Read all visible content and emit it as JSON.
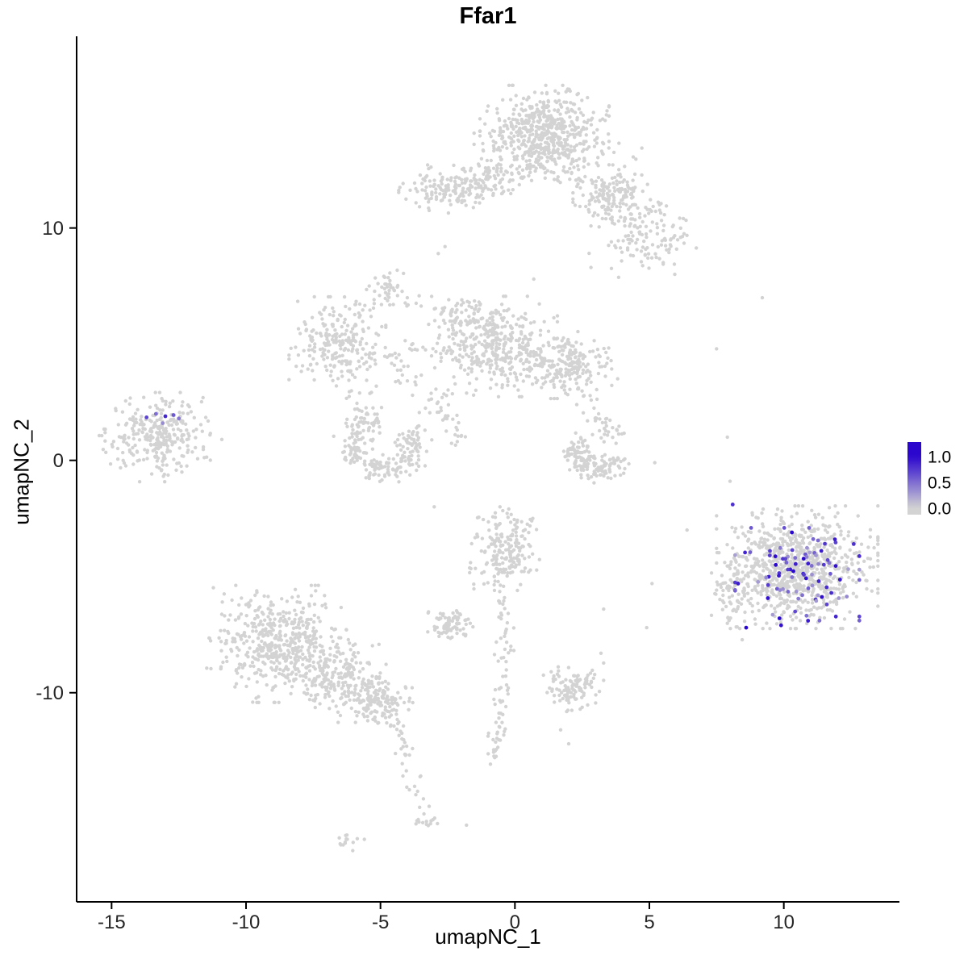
{
  "chart_data": {
    "type": "scatter",
    "title": "Ffar1",
    "xlabel": "umapNC_1",
    "ylabel": "umapNC_2",
    "xlim": [
      -16.3,
      14.3
    ],
    "ylim": [
      -19.0,
      18.25
    ],
    "xticks": [
      -15,
      -10,
      -5,
      0,
      5,
      10
    ],
    "yticks": [
      -10,
      0,
      10
    ],
    "grid": false,
    "color_low": "#d3d3d3",
    "color_high": "#2b07ce",
    "legend": {
      "position": "right",
      "ticks": [
        {
          "label": "1.0",
          "value": 1.0
        },
        {
          "label": "0.5",
          "value": 0.5
        },
        {
          "label": "0.0",
          "value": 0.0
        }
      ]
    },
    "clusters": [
      {
        "name": "top-main",
        "type": "gauss",
        "cx": 1.1,
        "cy": 14.1,
        "sx": 1.0,
        "sy": 0.85,
        "n": 550
      },
      {
        "name": "top-main-fringe",
        "type": "gauss",
        "cx": 1.6,
        "cy": 12.9,
        "sx": 1.3,
        "sy": 0.5,
        "n": 90
      },
      {
        "name": "top-right-dense",
        "type": "gauss",
        "cx": 3.6,
        "cy": 11.4,
        "sx": 0.6,
        "sy": 0.55,
        "n": 150
      },
      {
        "name": "top-right-spray",
        "type": "gauss",
        "cx": 4.8,
        "cy": 9.7,
        "sx": 0.85,
        "sy": 0.85,
        "n": 140
      },
      {
        "name": "top-left-arm",
        "type": "gauss",
        "cx": -2.4,
        "cy": 11.7,
        "sx": 0.8,
        "sy": 0.45,
        "n": 150
      },
      {
        "name": "top-bridge",
        "type": "gauss",
        "cx": -0.7,
        "cy": 12.2,
        "sx": 0.55,
        "sy": 0.4,
        "n": 60
      },
      {
        "name": "mid-left-blob",
        "type": "gauss",
        "cx": -6.6,
        "cy": 5.0,
        "sx": 0.75,
        "sy": 0.85,
        "n": 220
      },
      {
        "name": "mid-small-blob",
        "type": "gauss",
        "cx": -4.7,
        "cy": 7.5,
        "sx": 0.3,
        "sy": 0.35,
        "n": 30
      },
      {
        "name": "mid-center-blob",
        "type": "gauss",
        "cx": -0.7,
        "cy": 4.9,
        "sx": 0.95,
        "sy": 0.9,
        "n": 350
      },
      {
        "name": "mid-center-armpit",
        "type": "gauss",
        "cx": -1.9,
        "cy": 6.2,
        "sx": 0.45,
        "sy": 0.45,
        "n": 60
      },
      {
        "name": "mid-right-blob",
        "type": "gauss",
        "cx": 1.9,
        "cy": 4.1,
        "sx": 0.8,
        "sy": 0.6,
        "n": 220
      },
      {
        "name": "chain-e-g",
        "type": "line",
        "x1": -5.6,
        "y1": 4.6,
        "x2": -2.3,
        "y2": 4.9,
        "jitter": 0.3,
        "n": 40
      },
      {
        "name": "chain-diag",
        "type": "line",
        "x1": -4.5,
        "y1": 4.2,
        "x2": -2.7,
        "y2": 2.1,
        "jitter": 0.25,
        "n": 25
      },
      {
        "name": "chain-f-g",
        "type": "line",
        "x1": -4.6,
        "y1": 7.3,
        "x2": -2.6,
        "y2": 6.1,
        "jitter": 0.25,
        "n": 18
      },
      {
        "name": "chain-f-e",
        "type": "line",
        "x1": -5.0,
        "y1": 7.2,
        "x2": -6.2,
        "y2": 5.9,
        "jitter": 0.2,
        "n": 14
      },
      {
        "name": "chain-e-j",
        "type": "line",
        "x1": -6.3,
        "y1": 3.9,
        "x2": -5.3,
        "y2": 1.9,
        "jitter": 0.3,
        "n": 20
      },
      {
        "name": "ring-low-mid",
        "type": "arc",
        "cx": -4.9,
        "cy": 0.7,
        "r": 1.15,
        "a1": 100,
        "a2": 395,
        "w": 0.3,
        "n": 240
      },
      {
        "name": "chain-k",
        "type": "line",
        "x1": -3.2,
        "y1": 2.7,
        "x2": -2.0,
        "y2": 0.9,
        "jitter": 0.25,
        "n": 30
      },
      {
        "name": "left-cluster",
        "type": "gauss",
        "cx": -13.3,
        "cy": 1.0,
        "sx": 0.9,
        "sy": 0.8,
        "n": 300
      },
      {
        "name": "crescent-right-mid",
        "type": "arc",
        "cx": 3.1,
        "cy": 0.3,
        "r": 0.8,
        "a1": -10,
        "a2": -230,
        "w": 0.25,
        "n": 160
      },
      {
        "name": "crescent-top",
        "type": "gauss",
        "cx": 3.5,
        "cy": 1.4,
        "sx": 0.3,
        "sy": 0.3,
        "n": 30
      },
      {
        "name": "chain-h-m",
        "type": "line",
        "x1": 2.5,
        "y1": 3.3,
        "x2": 3.0,
        "y2": 2.0,
        "jitter": 0.2,
        "n": 12
      },
      {
        "name": "right-cluster",
        "type": "gauss",
        "cx": 10.5,
        "cy": -4.6,
        "sx": 1.25,
        "sy": 1.1,
        "n": 850
      },
      {
        "name": "right-cluster-west",
        "type": "gauss",
        "cx": 8.15,
        "cy": -5.8,
        "sx": 0.35,
        "sy": 0.8,
        "n": 60
      },
      {
        "name": "bottom-left-main",
        "type": "gauss",
        "cx": -8.7,
        "cy": -7.9,
        "sx": 1.15,
        "sy": 1.05,
        "n": 520
      },
      {
        "name": "bottom-left-arm",
        "type": "gauss",
        "cx": -6.3,
        "cy": -9.6,
        "sx": 0.8,
        "sy": 0.7,
        "n": 200
      },
      {
        "name": "bottom-left-arm2",
        "type": "gauss",
        "cx": -5.0,
        "cy": -10.4,
        "sx": 0.5,
        "sy": 0.45,
        "n": 120
      },
      {
        "name": "bottom-left-tail",
        "type": "line",
        "x1": -4.5,
        "y1": -11.0,
        "x2": -3.5,
        "y2": -15.3,
        "jitter": 0.17,
        "n": 35
      },
      {
        "name": "tail-blob",
        "type": "gauss",
        "cx": -3.4,
        "cy": -15.5,
        "sx": 0.22,
        "sy": 0.2,
        "n": 14
      },
      {
        "name": "tail-blob2",
        "type": "gauss",
        "cx": -6.2,
        "cy": -16.4,
        "sx": 0.25,
        "sy": 0.18,
        "n": 14
      },
      {
        "name": "center-bottom-blob",
        "type": "gauss",
        "cx": -0.4,
        "cy": -3.8,
        "sx": 0.55,
        "sy": 0.75,
        "n": 200
      },
      {
        "name": "small-blob-s",
        "type": "gauss",
        "cx": -2.4,
        "cy": -7.1,
        "sx": 0.35,
        "sy": 0.3,
        "n": 80
      },
      {
        "name": "strand-down1",
        "type": "line",
        "x1": -0.4,
        "y1": -5.6,
        "x2": -0.4,
        "y2": -9.3,
        "jitter": 0.15,
        "n": 35
      },
      {
        "name": "strand-down2",
        "type": "line",
        "x1": -0.4,
        "y1": -9.4,
        "x2": -0.8,
        "y2": -13.2,
        "jitter": 0.15,
        "n": 45
      },
      {
        "name": "bottom-center-blob",
        "type": "gauss",
        "cx": 2.1,
        "cy": -9.8,
        "sx": 0.5,
        "sy": 0.45,
        "n": 110
      },
      {
        "name": "singles",
        "type": "points",
        "pts": [
          [
            -2.85,
            8.9
          ],
          [
            -2.6,
            9.2
          ],
          [
            0.7,
            7.8
          ],
          [
            -11.6,
            2.7
          ],
          [
            -10.9,
            0.9
          ],
          [
            9.2,
            7.0
          ],
          [
            7.5,
            4.8
          ],
          [
            7.9,
            1.0
          ],
          [
            8.0,
            -0.9
          ],
          [
            5.1,
            -5.3
          ],
          [
            4.9,
            -7.2
          ],
          [
            3.3,
            -6.4
          ],
          [
            3.2,
            -8.3
          ],
          [
            1.7,
            -11.6
          ],
          [
            2.0,
            -12.2
          ],
          [
            2.3,
            2.4
          ],
          [
            2.7,
            1.7
          ],
          [
            -3.0,
            -2.0
          ],
          [
            5.2,
            -0.1
          ],
          [
            6.4,
            -3.0
          ],
          [
            -1.8,
            -15.7
          ]
        ]
      }
    ],
    "highlights": [
      {
        "name": "right-cluster-expression",
        "type": "gauss",
        "cx": 10.5,
        "cy": -4.9,
        "sx": 1.1,
        "sy": 0.95,
        "n": 85,
        "vmin": 0.25,
        "vmax": 1.0
      },
      {
        "name": "left-cluster-expression",
        "type": "points",
        "pts": [
          [
            -13.7,
            1.85,
            0.7
          ],
          [
            -13.35,
            2.0,
            0.5
          ],
          [
            -13.0,
            1.9,
            0.85
          ],
          [
            -12.7,
            1.95,
            0.6
          ],
          [
            -12.5,
            1.8,
            0.45
          ],
          [
            -13.1,
            1.6,
            0.35
          ]
        ]
      },
      {
        "name": "right-cluster-dark-dots",
        "type": "points",
        "pts": [
          [
            8.1,
            -1.9,
            0.8
          ],
          [
            8.6,
            -7.2,
            1.0
          ],
          [
            9.9,
            -7.1,
            0.95
          ],
          [
            10.3,
            -3.1,
            1.0
          ],
          [
            11.9,
            -3.4,
            0.9
          ],
          [
            9.7,
            -4.5,
            1.0
          ],
          [
            11.3,
            -5.2,
            0.85
          ],
          [
            12.6,
            -3.6,
            0.8
          ],
          [
            8.3,
            -5.3,
            0.9
          ],
          [
            10.9,
            -6.9,
            0.9
          ],
          [
            11.6,
            -6.2,
            0.7
          ]
        ]
      }
    ]
  }
}
